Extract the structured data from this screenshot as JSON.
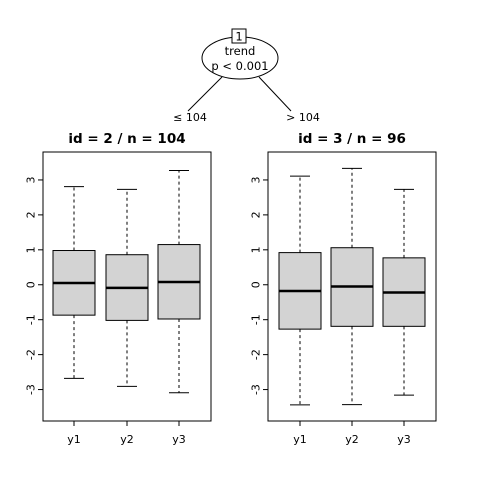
{
  "tree": {
    "root": {
      "node_id": "1",
      "variable": "trend",
      "p_value_text": "p < 0.001"
    },
    "edges": [
      {
        "label": "≤ 104"
      },
      {
        "label": "> 104"
      }
    ]
  },
  "chart_data": [
    {
      "type": "boxplot",
      "title": "id =  2  / n = 104",
      "categories": [
        "y1",
        "y2",
        "y3"
      ],
      "ylim": [
        -3.9,
        3.8
      ],
      "yticks": [
        -3,
        -2,
        -1,
        0,
        1,
        2,
        3
      ],
      "boxes": [
        {
          "name": "y1",
          "whisker_low": -2.68,
          "q1": -0.87,
          "median": 0.05,
          "q3": 0.98,
          "whisker_high": 2.81
        },
        {
          "name": "y2",
          "whisker_low": -2.91,
          "q1": -1.02,
          "median": -0.09,
          "q3": 0.86,
          "whisker_high": 2.73
        },
        {
          "name": "y3",
          "whisker_low": -3.09,
          "q1": -0.98,
          "median": 0.08,
          "q3": 1.15,
          "whisker_high": 3.27
        }
      ],
      "grid": false,
      "box_fill": "#d3d3d3"
    },
    {
      "type": "boxplot",
      "title": "id =  3  / n = 96",
      "categories": [
        "y1",
        "y2",
        "y3"
      ],
      "ylim": [
        -3.9,
        3.8
      ],
      "yticks": [
        -3,
        -2,
        -1,
        0,
        1,
        2,
        3
      ],
      "boxes": [
        {
          "name": "y1",
          "whisker_low": -3.44,
          "q1": -1.27,
          "median": -0.18,
          "q3": 0.92,
          "whisker_high": 3.11
        },
        {
          "name": "y2",
          "whisker_low": -3.43,
          "q1": -1.19,
          "median": -0.05,
          "q3": 1.06,
          "whisker_high": 3.33
        },
        {
          "name": "y3",
          "whisker_low": -3.16,
          "q1": -1.19,
          "median": -0.22,
          "q3": 0.77,
          "whisker_high": 2.73
        }
      ],
      "grid": false,
      "box_fill": "#d3d3d3"
    }
  ]
}
